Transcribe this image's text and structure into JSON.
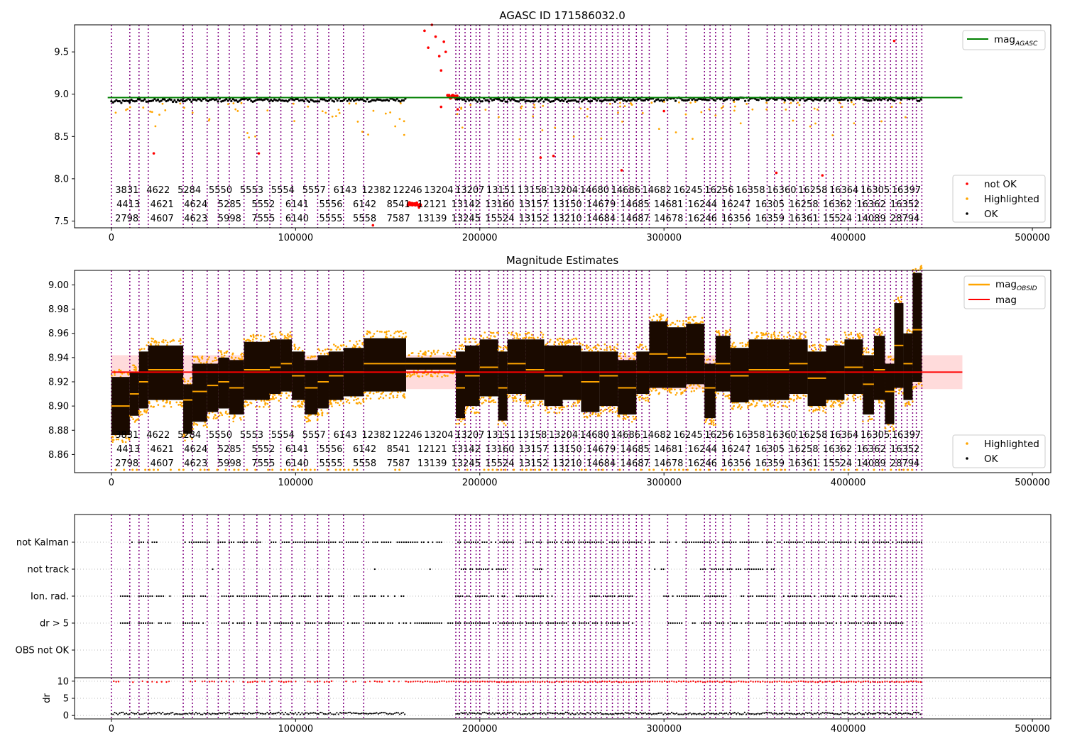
{
  "colors": {
    "ok": "#000000",
    "highlighted": "#ffa500",
    "not_ok": "#ff0000",
    "mag_agasc": "#008000",
    "mag_obsid": "#ffa500",
    "mag": "#ff0000",
    "obs_line": "#800080",
    "band": "#ffcccc"
  },
  "chart_data": [
    {
      "type": "scatter",
      "title": "AGASC ID 171586032.0",
      "xlim": [
        -20000,
        510000
      ],
      "ylim": [
        7.42,
        9.82
      ],
      "xticks": [
        0,
        100000,
        200000,
        300000,
        400000,
        500000
      ],
      "xtick_labels": [
        "0",
        "100000",
        "200000",
        "300000",
        "400000",
        "500000"
      ],
      "yticks": [
        7.5,
        8.0,
        8.5,
        9.0,
        9.5
      ],
      "ytick_labels": [
        "7.5",
        "8.0",
        "8.5",
        "9.0",
        "9.5"
      ],
      "grid": false,
      "reference_line": {
        "name": "mag_AGASC",
        "y": 8.96,
        "x_range": [
          0,
          462000
        ]
      },
      "legend_top": {
        "position": "upper right",
        "entries": [
          {
            "label": "mag",
            "sub": "AGASC",
            "marker": "line",
            "color": "#008000"
          }
        ]
      },
      "legend_bottom": {
        "position": "lower right",
        "entries": [
          {
            "label": "not OK",
            "marker": "dot",
            "color": "#ff0000"
          },
          {
            "label": "Highlighted",
            "marker": "dot",
            "color": "#ffa500"
          },
          {
            "label": "OK",
            "marker": "dot",
            "color": "#000000"
          }
        ]
      },
      "ok_segments": [
        {
          "x": [
            0,
            10000
          ],
          "y": 8.91
        },
        {
          "x": [
            10000,
            39000
          ],
          "y": 8.925
        },
        {
          "x": [
            39000,
            160000
          ],
          "y": 8.93
        },
        {
          "x": [
            187000,
            300000
          ],
          "y": 8.93
        },
        {
          "x": [
            300000,
            440000
          ],
          "y": 8.94
        }
      ],
      "not_ok_points": [
        [
          162000,
          7.7
        ],
        [
          163500,
          7.71
        ],
        [
          165000,
          7.7
        ],
        [
          166500,
          7.69
        ],
        [
          167000,
          7.66
        ],
        [
          170000,
          9.75
        ],
        [
          172000,
          9.55
        ],
        [
          174000,
          9.82
        ],
        [
          176000,
          9.68
        ],
        [
          178000,
          9.45
        ],
        [
          179000,
          9.28
        ],
        [
          180500,
          9.62
        ],
        [
          181500,
          9.5
        ],
        [
          183000,
          8.97
        ],
        [
          184000,
          8.95
        ],
        [
          185500,
          8.98
        ],
        [
          186500,
          8.96
        ],
        [
          179000,
          8.85
        ],
        [
          188000,
          8.82
        ],
        [
          80000,
          8.3
        ],
        [
          23000,
          8.3
        ],
        [
          233000,
          8.25
        ],
        [
          240000,
          8.27
        ],
        [
          142000,
          7.45
        ],
        [
          277000,
          8.1
        ],
        [
          425000,
          9.63
        ],
        [
          300000,
          8.8
        ],
        [
          361000,
          8.07
        ],
        [
          386000,
          8.04
        ]
      ],
      "obs_labels_row1": [
        "3831",
        "4622",
        "5284",
        "5550",
        "5553",
        "5554",
        "5557",
        "6143",
        "12382",
        "12246",
        "13204",
        "13207",
        "13151",
        "13158",
        "13204",
        "14680",
        "14686",
        "14682",
        "16245",
        "16256",
        "16358",
        "16360",
        "16258",
        "16364",
        "16305",
        "16397"
      ],
      "obs_labels_row2": [
        "4413",
        "4621",
        "4624",
        "5285",
        "5552",
        "6141",
        "5556",
        "6142",
        "8541",
        "12121",
        "13142",
        "13160",
        "13157",
        "13150",
        "14679",
        "14685",
        "14681",
        "16244",
        "16247",
        "16305",
        "16258",
        "16362",
        "16362",
        "16352"
      ],
      "obs_labels_row3": [
        "2798",
        "4607",
        "4623",
        "5998",
        "7555",
        "6140",
        "5555",
        "5558",
        "7587",
        "13139",
        "13245",
        "15524",
        "13152",
        "13210",
        "14684",
        "14687",
        "14678",
        "16246",
        "16356",
        "16359",
        "16361",
        "15524",
        "14089",
        "28794"
      ]
    },
    {
      "type": "scatter",
      "title": "Magnitude Estimates",
      "xlim": [
        -20000,
        510000
      ],
      "ylim": [
        8.845,
        9.012
      ],
      "xticks": [
        0,
        100000,
        200000,
        300000,
        400000,
        500000
      ],
      "xtick_labels": [
        "0",
        "100000",
        "200000",
        "300000",
        "400000",
        "500000"
      ],
      "yticks": [
        8.86,
        8.88,
        8.9,
        8.92,
        8.94,
        8.96,
        8.98,
        9.0
      ],
      "ytick_labels": [
        "8.86",
        "8.88",
        "8.90",
        "8.92",
        "8.94",
        "8.96",
        "8.98",
        "9.00"
      ],
      "grid": false,
      "mag_line": {
        "name": "mag",
        "y": 8.928,
        "band": [
          8.914,
          8.942
        ],
        "x_range": [
          0,
          462000
        ]
      },
      "legend_top": {
        "position": "upper right",
        "entries": [
          {
            "label": "mag",
            "sub": "OBSID",
            "marker": "line",
            "color": "#ffa500"
          },
          {
            "label": "mag",
            "marker": "line",
            "color": "#ff0000"
          }
        ]
      },
      "legend_bottom": {
        "position": "lower right",
        "entries": [
          {
            "label": "Highlighted",
            "marker": "dot",
            "color": "#ffa500"
          },
          {
            "label": "OK",
            "marker": "dot",
            "color": "#000000"
          }
        ]
      },
      "observations": [
        {
          "x0": 0,
          "x1": 10000,
          "mean": 8.9,
          "lo": 8.876,
          "hi": 8.924
        },
        {
          "x0": 10000,
          "x1": 15000,
          "mean": 8.91,
          "lo": 8.892,
          "hi": 8.928
        },
        {
          "x0": 15000,
          "x1": 20000,
          "mean": 8.92,
          "lo": 8.898,
          "hi": 8.945
        },
        {
          "x0": 20000,
          "x1": 39000,
          "mean": 8.93,
          "lo": 8.905,
          "hi": 8.95
        },
        {
          "x0": 39000,
          "x1": 44000,
          "mean": 8.905,
          "lo": 8.877,
          "hi": 8.918
        },
        {
          "x0": 44000,
          "x1": 52000,
          "mean": 8.912,
          "lo": 8.887,
          "hi": 8.935
        },
        {
          "x0": 52000,
          "x1": 58000,
          "mean": 8.917,
          "lo": 8.895,
          "hi": 8.935
        },
        {
          "x0": 58000,
          "x1": 64000,
          "mean": 8.92,
          "lo": 8.898,
          "hi": 8.94
        },
        {
          "x0": 64000,
          "x1": 72000,
          "mean": 8.915,
          "lo": 8.893,
          "hi": 8.938
        },
        {
          "x0": 72000,
          "x1": 86000,
          "mean": 8.93,
          "lo": 8.905,
          "hi": 8.953
        },
        {
          "x0": 86000,
          "x1": 92000,
          "mean": 8.932,
          "lo": 8.91,
          "hi": 8.955
        },
        {
          "x0": 92000,
          "x1": 98000,
          "mean": 8.935,
          "lo": 8.912,
          "hi": 8.955
        },
        {
          "x0": 98000,
          "x1": 105000,
          "mean": 8.925,
          "lo": 8.905,
          "hi": 8.945
        },
        {
          "x0": 105000,
          "x1": 112000,
          "mean": 8.915,
          "lo": 8.893,
          "hi": 8.938
        },
        {
          "x0": 112000,
          "x1": 118000,
          "mean": 8.92,
          "lo": 8.898,
          "hi": 8.942
        },
        {
          "x0": 118000,
          "x1": 126000,
          "mean": 8.925,
          "lo": 8.905,
          "hi": 8.945
        },
        {
          "x0": 126000,
          "x1": 137000,
          "mean": 8.928,
          "lo": 8.908,
          "hi": 8.948
        },
        {
          "x0": 137000,
          "x1": 160000,
          "mean": 8.935,
          "lo": 8.912,
          "hi": 8.956
        },
        {
          "x0": 160000,
          "x1": 187000,
          "mean": 8.935,
          "lo": 8.93,
          "hi": 8.94
        },
        {
          "x0": 187000,
          "x1": 192000,
          "mean": 8.915,
          "lo": 8.89,
          "hi": 8.945
        },
        {
          "x0": 192000,
          "x1": 200000,
          "mean": 8.925,
          "lo": 8.9,
          "hi": 8.95
        },
        {
          "x0": 200000,
          "x1": 210000,
          "mean": 8.932,
          "lo": 8.908,
          "hi": 8.955
        },
        {
          "x0": 210000,
          "x1": 215000,
          "mean": 8.915,
          "lo": 8.888,
          "hi": 8.945
        },
        {
          "x0": 215000,
          "x1": 225000,
          "mean": 8.935,
          "lo": 8.91,
          "hi": 8.955
        },
        {
          "x0": 225000,
          "x1": 235000,
          "mean": 8.93,
          "lo": 8.905,
          "hi": 8.955
        },
        {
          "x0": 235000,
          "x1": 245000,
          "mean": 8.925,
          "lo": 8.9,
          "hi": 8.95
        },
        {
          "x0": 245000,
          "x1": 255000,
          "mean": 8.928,
          "lo": 8.905,
          "hi": 8.95
        },
        {
          "x0": 255000,
          "x1": 265000,
          "mean": 8.92,
          "lo": 8.895,
          "hi": 8.945
        },
        {
          "x0": 265000,
          "x1": 275000,
          "mean": 8.925,
          "lo": 8.9,
          "hi": 8.945
        },
        {
          "x0": 275000,
          "x1": 285000,
          "mean": 8.915,
          "lo": 8.893,
          "hi": 8.938
        },
        {
          "x0": 285000,
          "x1": 292000,
          "mean": 8.928,
          "lo": 8.91,
          "hi": 8.945
        },
        {
          "x0": 292000,
          "x1": 302000,
          "mean": 8.943,
          "lo": 8.915,
          "hi": 8.97
        },
        {
          "x0": 302000,
          "x1": 312000,
          "mean": 8.94,
          "lo": 8.915,
          "hi": 8.965
        },
        {
          "x0": 312000,
          "x1": 322000,
          "mean": 8.943,
          "lo": 8.918,
          "hi": 8.968
        },
        {
          "x0": 322000,
          "x1": 328000,
          "mean": 8.915,
          "lo": 8.89,
          "hi": 8.935
        },
        {
          "x0": 328000,
          "x1": 336000,
          "mean": 8.935,
          "lo": 8.912,
          "hi": 8.958
        },
        {
          "x0": 336000,
          "x1": 346000,
          "mean": 8.925,
          "lo": 8.903,
          "hi": 8.948
        },
        {
          "x0": 346000,
          "x1": 356000,
          "mean": 8.93,
          "lo": 8.905,
          "hi": 8.955
        },
        {
          "x0": 356000,
          "x1": 368000,
          "mean": 8.93,
          "lo": 8.905,
          "hi": 8.955
        },
        {
          "x0": 368000,
          "x1": 378000,
          "mean": 8.935,
          "lo": 8.91,
          "hi": 8.955
        },
        {
          "x0": 378000,
          "x1": 388000,
          "mean": 8.923,
          "lo": 8.9,
          "hi": 8.945
        },
        {
          "x0": 388000,
          "x1": 398000,
          "mean": 8.928,
          "lo": 8.905,
          "hi": 8.95
        },
        {
          "x0": 398000,
          "x1": 408000,
          "mean": 8.932,
          "lo": 8.91,
          "hi": 8.955
        },
        {
          "x0": 408000,
          "x1": 414000,
          "mean": 8.918,
          "lo": 8.893,
          "hi": 8.942
        },
        {
          "x0": 414000,
          "x1": 420000,
          "mean": 8.93,
          "lo": 8.905,
          "hi": 8.958
        },
        {
          "x0": 420000,
          "x1": 425000,
          "mean": 8.912,
          "lo": 8.885,
          "hi": 8.935
        },
        {
          "x0": 425000,
          "x1": 430000,
          "mean": 8.95,
          "lo": 8.915,
          "hi": 8.985
        },
        {
          "x0": 430000,
          "x1": 435000,
          "mean": 8.935,
          "lo": 8.905,
          "hi": 8.96
        },
        {
          "x0": 435000,
          "x1": 440000,
          "mean": 8.963,
          "lo": 8.92,
          "hi": 9.01
        }
      ],
      "obs_labels_row1": [
        "3831",
        "4622",
        "5284",
        "5550",
        "5553",
        "5554",
        "5557",
        "6143",
        "12382",
        "12246",
        "13204",
        "13207",
        "13151",
        "13158",
        "13204",
        "14680",
        "14686",
        "14682",
        "16245",
        "16256",
        "16358",
        "16360",
        "16258",
        "16364",
        "16305",
        "16397"
      ],
      "obs_labels_row2": [
        "4413",
        "4621",
        "4624",
        "5285",
        "5552",
        "6141",
        "5556",
        "6142",
        "8541",
        "12121",
        "13142",
        "13160",
        "13157",
        "13150",
        "14679",
        "14685",
        "14681",
        "16244",
        "16247",
        "16305",
        "16258",
        "16362",
        "16362",
        "16352"
      ],
      "obs_labels_row3": [
        "2798",
        "4607",
        "4623",
        "5998",
        "7555",
        "6140",
        "5555",
        "5558",
        "7587",
        "13139",
        "13245",
        "15524",
        "13152",
        "13210",
        "14684",
        "14687",
        "14678",
        "16246",
        "16356",
        "16359",
        "16361",
        "15524",
        "14089",
        "28794"
      ]
    },
    {
      "type": "scatter",
      "title": "",
      "xlim": [
        -20000,
        510000
      ],
      "flag_labels": [
        "not Kalman",
        "not track",
        "Ion. rad.",
        "dr > 5",
        "OBS not OK"
      ],
      "flag_coverage": {
        "not Kalman": [
          [
            0,
            1000
          ],
          [
            10000,
            12000
          ],
          [
            15000,
            25000
          ],
          [
            40000,
            160000
          ],
          [
            160000,
            180000
          ],
          [
            187000,
            220000
          ],
          [
            225000,
            440000
          ]
        ],
        "not track": [
          [
            55000,
            56000
          ],
          [
            143000,
            144000
          ],
          [
            173000,
            174000
          ],
          [
            190000,
            215000
          ],
          [
            230000,
            235000
          ],
          [
            295000,
            300000
          ],
          [
            320000,
            360000
          ]
        ],
        "Ion. rad.": [
          [
            5000,
            10000
          ],
          [
            15000,
            32000
          ],
          [
            39000,
            52000
          ],
          [
            60000,
            135000
          ],
          [
            137000,
            160000
          ],
          [
            187000,
            215000
          ],
          [
            220000,
            240000
          ],
          [
            260000,
            285000
          ],
          [
            300000,
            360000
          ],
          [
            365000,
            430000
          ]
        ],
        "dr > 5": [
          [
            5000,
            10000
          ],
          [
            15000,
            32000
          ],
          [
            39000,
            52000
          ],
          [
            60000,
            135000
          ],
          [
            137000,
            160000
          ],
          [
            160000,
            187000
          ],
          [
            187000,
            285000
          ],
          [
            300000,
            430000
          ]
        ],
        "OBS not OK": []
      },
      "dr_ylim": [
        -1,
        11
      ],
      "dr_yticks": [
        0,
        5,
        10
      ],
      "dr_ytick_labels": [
        "0",
        "5",
        "10"
      ],
      "dr_ylabel": "dr",
      "xticks": [
        0,
        100000,
        200000,
        300000,
        400000,
        500000
      ],
      "xtick_labels": [
        "0",
        "100000",
        "200000",
        "300000",
        "400000",
        "500000"
      ]
    }
  ],
  "obs_boundaries": [
    0,
    10000,
    15000,
    20000,
    39000,
    44000,
    52000,
    58000,
    64000,
    72000,
    79000,
    86000,
    92000,
    98000,
    105000,
    112000,
    118000,
    126000,
    137000,
    187000,
    189000,
    192000,
    195000,
    198000,
    200000,
    205000,
    210000,
    213000,
    215000,
    218000,
    222000,
    225000,
    229000,
    233000,
    237000,
    241000,
    245000,
    248000,
    251000,
    254000,
    257000,
    260000,
    263000,
    266000,
    269000,
    272000,
    275000,
    278000,
    281000,
    285000,
    288000,
    292000,
    302000,
    312000,
    322000,
    325000,
    328000,
    332000,
    336000,
    346000,
    356000,
    360000,
    364000,
    368000,
    372000,
    376000,
    380000,
    384000,
    388000,
    392000,
    396000,
    400000,
    404000,
    408000,
    411000,
    414000,
    417000,
    420000,
    423000,
    426000,
    429000,
    432000,
    435000,
    437000,
    440000
  ]
}
